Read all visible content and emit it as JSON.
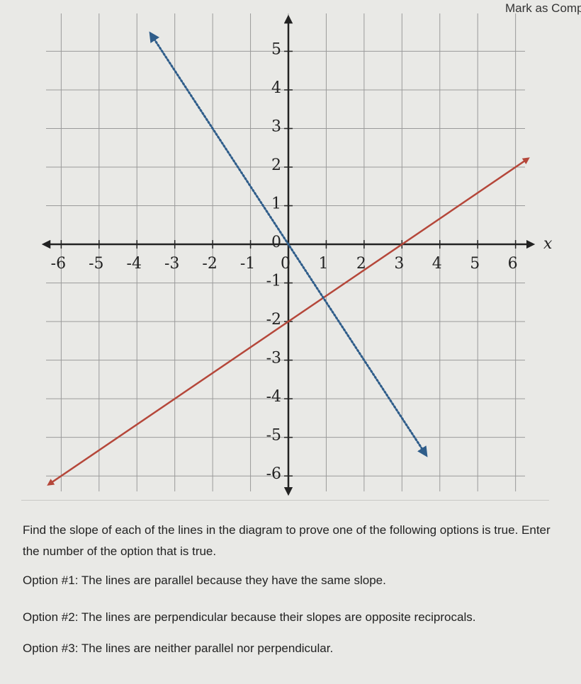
{
  "header": {
    "action": "Mark as Comp"
  },
  "chart_data": {
    "type": "line",
    "x_label": "x",
    "xlim": [
      -6.4,
      6.4
    ],
    "ylim": [
      -6.4,
      6.2
    ],
    "xticks": [
      -6,
      -5,
      -4,
      -3,
      -2,
      -1,
      0,
      1,
      2,
      3,
      4,
      5,
      6
    ],
    "yticks": [
      -6,
      -5,
      -4,
      -3,
      -2,
      -1,
      0,
      1,
      2,
      3,
      4,
      5
    ],
    "grid": true,
    "series": [
      {
        "color": "#b5473a",
        "style": "solid",
        "x": [
          -6.3,
          6.3
        ],
        "values": [
          -6.2,
          2.2
        ]
      },
      {
        "color": "#2f5d8a",
        "style": "dotted",
        "x": [
          -3.6,
          3.6
        ],
        "values": [
          5.4,
          -5.4
        ]
      }
    ]
  },
  "question": "Find the slope of each of the lines in the diagram to prove one of the following options is true. Enter the number of the option that is true.",
  "options": [
    "Option #1: The lines are parallel because they have the same slope.",
    "Option #2: The lines are perpendicular because their slopes are opposite reciprocals.",
    "Option #3: The lines are neither parallel nor perpendicular."
  ]
}
